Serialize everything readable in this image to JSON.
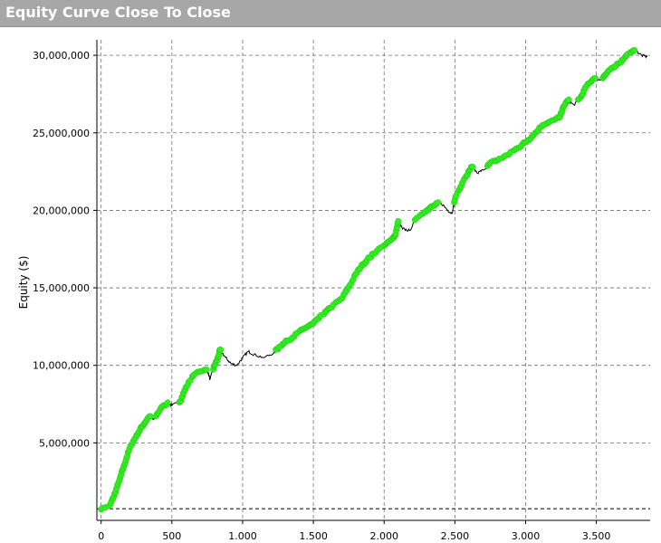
{
  "window": {
    "title": "Equity Curve Close To Close"
  },
  "colors": {
    "background": "#ffffff",
    "grid": "#6e6e6e",
    "line": "#000000",
    "new_high_marker": "#33ee22",
    "titlebar": "#a7a7a7"
  },
  "chart_data": {
    "type": "line",
    "title": "",
    "xlabel": "",
    "ylabel": "Equity ($)",
    "xlim": [
      -30,
      3880
    ],
    "ylim": [
      0,
      31000000
    ],
    "xticks": [
      0,
      500,
      1000,
      1500,
      2000,
      2500,
      3000,
      3500
    ],
    "xtick_labels": [
      "0",
      "500",
      "1.000",
      "1.500",
      "2.000",
      "2.500",
      "3.000",
      "3.500"
    ],
    "yticks": [
      5000000,
      10000000,
      15000000,
      20000000,
      25000000,
      30000000
    ],
    "ytick_labels": [
      "5,000,000",
      "10,000,000",
      "15,000,000",
      "20,000,000",
      "25,000,000",
      "30,000,000"
    ],
    "reference_lines": [
      {
        "y": 750000,
        "style": "dashed"
      }
    ],
    "grid": true,
    "series": [
      {
        "style": "line with green markers at new equity highs",
        "points": [
          [
            0,
            700000
          ],
          [
            60,
            900000
          ],
          [
            100,
            1800000
          ],
          [
            130,
            2600000
          ],
          [
            160,
            3500000
          ],
          [
            200,
            4600000
          ],
          [
            250,
            5500000
          ],
          [
            300,
            6200000
          ],
          [
            340,
            6700000
          ],
          [
            370,
            6500000
          ],
          [
            420,
            7200000
          ],
          [
            470,
            7600000
          ],
          [
            500,
            7400000
          ],
          [
            560,
            7700000
          ],
          [
            600,
            8600000
          ],
          [
            650,
            9300000
          ],
          [
            700,
            9600000
          ],
          [
            750,
            9700000
          ],
          [
            770,
            9100000
          ],
          [
            800,
            10000000
          ],
          [
            820,
            10300000
          ],
          [
            840,
            11000000
          ],
          [
            880,
            10500000
          ],
          [
            920,
            10100000
          ],
          [
            960,
            10000000
          ],
          [
            1000,
            10500000
          ],
          [
            1040,
            10900000
          ],
          [
            1080,
            10700000
          ],
          [
            1150,
            10500000
          ],
          [
            1220,
            10800000
          ],
          [
            1260,
            11200000
          ],
          [
            1320,
            11600000
          ],
          [
            1380,
            12000000
          ],
          [
            1440,
            12400000
          ],
          [
            1500,
            12700000
          ],
          [
            1560,
            13200000
          ],
          [
            1620,
            13700000
          ],
          [
            1700,
            14300000
          ],
          [
            1760,
            15200000
          ],
          [
            1820,
            16200000
          ],
          [
            1880,
            16800000
          ],
          [
            1950,
            17400000
          ],
          [
            2000,
            17700000
          ],
          [
            2050,
            18100000
          ],
          [
            2080,
            18400000
          ],
          [
            2100,
            19300000
          ],
          [
            2130,
            18800000
          ],
          [
            2180,
            18700000
          ],
          [
            2230,
            19500000
          ],
          [
            2300,
            20000000
          ],
          [
            2350,
            20300000
          ],
          [
            2400,
            20500000
          ],
          [
            2450,
            20000000
          ],
          [
            2480,
            19800000
          ],
          [
            2500,
            20700000
          ],
          [
            2540,
            21500000
          ],
          [
            2580,
            22200000
          ],
          [
            2620,
            22800000
          ],
          [
            2660,
            22400000
          ],
          [
            2700,
            22600000
          ],
          [
            2760,
            23100000
          ],
          [
            2820,
            23300000
          ],
          [
            2880,
            23600000
          ],
          [
            2940,
            24000000
          ],
          [
            3000,
            24400000
          ],
          [
            3060,
            24900000
          ],
          [
            3120,
            25500000
          ],
          [
            3180,
            25700000
          ],
          [
            3240,
            26000000
          ],
          [
            3270,
            26700000
          ],
          [
            3300,
            27100000
          ],
          [
            3340,
            26800000
          ],
          [
            3390,
            27300000
          ],
          [
            3430,
            28000000
          ],
          [
            3480,
            28500000
          ],
          [
            3530,
            28400000
          ],
          [
            3570,
            28800000
          ],
          [
            3620,
            29200000
          ],
          [
            3660,
            29500000
          ],
          [
            3700,
            29800000
          ],
          [
            3740,
            30200000
          ],
          [
            3780,
            30300000
          ],
          [
            3820,
            30000000
          ],
          [
            3860,
            29900000
          ]
        ]
      }
    ]
  }
}
